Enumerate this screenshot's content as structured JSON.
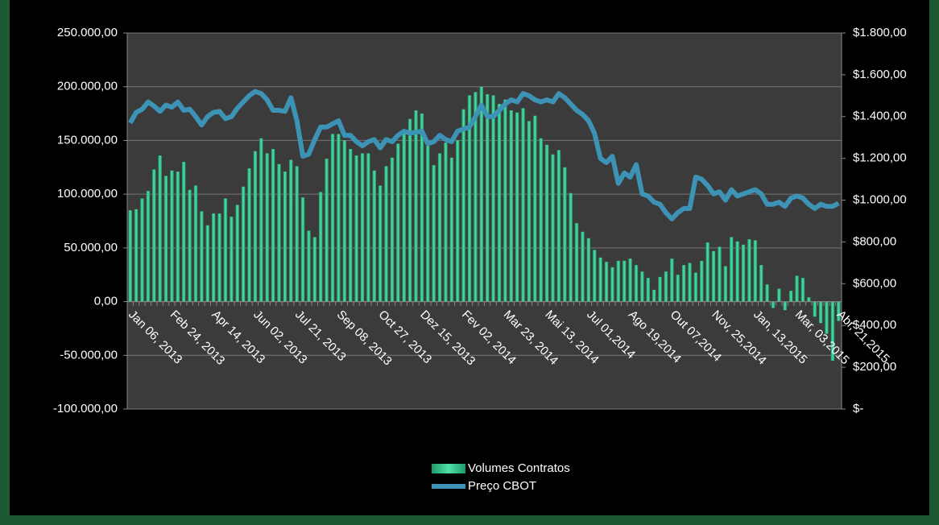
{
  "chart_data": {
    "type": "bar",
    "categories": [
      "Jan 06, 2013",
      null,
      null,
      null,
      null,
      null,
      null,
      "Feb 24, 2013",
      null,
      null,
      null,
      null,
      null,
      null,
      "Apr 14, 2013",
      null,
      null,
      null,
      null,
      null,
      null,
      "Jun 02, 2013",
      null,
      null,
      null,
      null,
      null,
      null,
      "Jul 21, 2013",
      null,
      null,
      null,
      null,
      null,
      null,
      "Sep 08, 2013",
      null,
      null,
      null,
      null,
      null,
      null,
      "Oct 27, 2013",
      null,
      null,
      null,
      null,
      null,
      null,
      "Dez 15, 2013",
      null,
      null,
      null,
      null,
      null,
      null,
      "Fev 02, 2014",
      null,
      null,
      null,
      null,
      null,
      null,
      "Mar 23, 2014",
      null,
      null,
      null,
      null,
      null,
      null,
      "Mai 13, 2014",
      null,
      null,
      null,
      null,
      null,
      null,
      "Jul 01,2014",
      null,
      null,
      null,
      null,
      null,
      null,
      "Ago 19,2014",
      null,
      null,
      null,
      null,
      null,
      null,
      "Out 07,2014",
      null,
      null,
      null,
      null,
      null,
      null,
      "Nov, 25,2014",
      null,
      null,
      null,
      null,
      null,
      null,
      "Jan, 13,2015",
      null,
      null,
      null,
      null,
      null,
      null,
      "Mar, 03,2015",
      null,
      null,
      null,
      null,
      null,
      null,
      "Abr, 21,2015"
    ],
    "series": [
      {
        "name": "Volumes Contratos",
        "color": "#2fbf8a",
        "values": [
          85000,
          86000,
          96000,
          103000,
          123000,
          136000,
          117000,
          122000,
          121000,
          130000,
          104000,
          108000,
          84000,
          71000,
          82000,
          82000,
          96000,
          79000,
          90000,
          107000,
          124000,
          140000,
          152000,
          138000,
          142000,
          128000,
          121000,
          132000,
          126000,
          97000,
          66000,
          60000,
          102000,
          133000,
          156000,
          156000,
          150000,
          142000,
          136000,
          138000,
          138000,
          122000,
          108000,
          126000,
          134000,
          147000,
          156000,
          170000,
          178000,
          175000,
          145000,
          127000,
          138000,
          148000,
          134000,
          150000,
          179000,
          192000,
          195000,
          200000,
          193000,
          192000,
          184000,
          188000,
          178000,
          176000,
          180000,
          168000,
          173000,
          152000,
          146000,
          137000,
          141000,
          125000,
          101000,
          73000,
          65000,
          59000,
          48000,
          41000,
          37000,
          32000,
          38000,
          38000,
          40000,
          34000,
          28000,
          22000,
          11000,
          23000,
          28000,
          40000,
          25000,
          34000,
          36000,
          27000,
          38000,
          55000,
          47000,
          51000,
          33000,
          60000,
          56000,
          53000,
          58000,
          57000,
          34000,
          16000,
          -6000,
          12000,
          -8000,
          10000,
          24000,
          22000,
          4000,
          -14000,
          -20000,
          -30000,
          -55000,
          -18000
        ]
      },
      {
        "name": "Preço CBOT",
        "color": "#3d93b5",
        "axis": "y2",
        "type": "line",
        "values": [
          1370,
          1420,
          1435,
          1470,
          1450,
          1425,
          1455,
          1445,
          1470,
          1430,
          1435,
          1400,
          1360,
          1400,
          1420,
          1425,
          1390,
          1400,
          1440,
          1470,
          1500,
          1520,
          1510,
          1480,
          1430,
          1430,
          1425,
          1490,
          1380,
          1210,
          1220,
          1290,
          1350,
          1350,
          1365,
          1380,
          1310,
          1310,
          1280,
          1260,
          1280,
          1290,
          1250,
          1290,
          1280,
          1310,
          1330,
          1320,
          1325,
          1330,
          1270,
          1280,
          1310,
          1290,
          1280,
          1330,
          1340,
          1350,
          1400,
          1455,
          1400,
          1400,
          1430,
          1460,
          1480,
          1470,
          1510,
          1500,
          1480,
          1470,
          1480,
          1470,
          1510,
          1490,
          1460,
          1430,
          1410,
          1380,
          1320,
          1200,
          1180,
          1210,
          1080,
          1130,
          1110,
          1170,
          1030,
          1020,
          990,
          980,
          940,
          910,
          940,
          960,
          960,
          1110,
          1100,
          1070,
          1030,
          1040,
          1000,
          1050,
          1020,
          1030,
          1040,
          1050,
          1030,
          980,
          980,
          990,
          970,
          1010,
          1020,
          1010,
          980,
          960,
          980,
          970,
          970,
          985
        ]
      }
    ],
    "ylim": [
      -100000,
      250000
    ],
    "yticks": [
      {
        "value": -100000,
        "label": "-100.000,00"
      },
      {
        "value": -50000,
        "label": "-50.000,00"
      },
      {
        "value": 0,
        "label": "0,00"
      },
      {
        "value": 50000,
        "label": "50.000,00"
      },
      {
        "value": 100000,
        "label": "100.000,00"
      },
      {
        "value": 150000,
        "label": "150.000,00"
      },
      {
        "value": 200000,
        "label": "200.000,00"
      },
      {
        "value": 250000,
        "label": "250.000,00"
      }
    ],
    "y2lim": [
      0,
      1800
    ],
    "y2ticks": [
      {
        "value": 0,
        "label": "$-"
      },
      {
        "value": 200,
        "label": "$200,00"
      },
      {
        "value": 400,
        "label": "$400,00"
      },
      {
        "value": 600,
        "label": "$600,00"
      },
      {
        "value": 800,
        "label": "$800,00"
      },
      {
        "value": 1000,
        "label": "$1.000,00"
      },
      {
        "value": 1200,
        "label": "$1.200,00"
      },
      {
        "value": 1400,
        "label": "$1.400,00"
      },
      {
        "value": 1600,
        "label": "$1.600,00"
      },
      {
        "value": 1800,
        "label": "$1.800,00"
      }
    ],
    "grid": true,
    "legend": "bottom"
  }
}
